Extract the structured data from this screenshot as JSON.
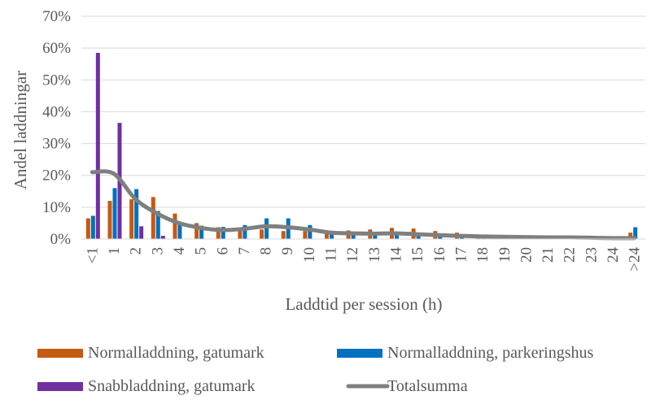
{
  "chart_data": {
    "type": "bar",
    "title": "",
    "xlabel": "Laddtid per session (h)",
    "ylabel": "Andel laddningar",
    "ylim": [
      0,
      0.7
    ],
    "yticks": [
      "0%",
      "10%",
      "20%",
      "30%",
      "40%",
      "50%",
      "60%",
      "70%"
    ],
    "grid": true,
    "legend_position": "bottom",
    "categories": [
      "<1",
      "1",
      "2",
      "3",
      "4",
      "5",
      "6",
      "7",
      "8",
      "9",
      "10",
      "11",
      "12",
      "13",
      "14",
      "15",
      "16",
      "17",
      "18",
      "19",
      "20",
      "21",
      "22",
      "23",
      "24",
      ">24"
    ],
    "series": [
      {
        "name": "Normalladdning, gatumark",
        "type": "bar",
        "color": "#C55A11",
        "values": [
          0.065,
          0.12,
          0.125,
          0.132,
          0.08,
          0.05,
          0.037,
          0.033,
          0.03,
          0.025,
          0.025,
          0.022,
          0.027,
          0.03,
          0.035,
          0.033,
          0.025,
          0.02,
          0.013,
          0.01,
          0.008,
          0.007,
          0.006,
          0.005,
          0.005,
          0.02
        ]
      },
      {
        "name": "Normalladdning, parkeringshus",
        "type": "bar",
        "color": "#0070C0",
        "values": [
          0.073,
          0.16,
          0.157,
          0.088,
          0.053,
          0.042,
          0.038,
          0.044,
          0.065,
          0.065,
          0.044,
          0.024,
          0.017,
          0.014,
          0.012,
          0.01,
          0.008,
          0.006,
          0.005,
          0.004,
          0.003,
          0.003,
          0.003,
          0.002,
          0.002,
          0.037
        ]
      },
      {
        "name": "Snabbladdning, gatumark",
        "type": "bar",
        "color": "#7030A0",
        "values": [
          0.585,
          0.365,
          0.04,
          0.01,
          0,
          0,
          0,
          0,
          0,
          0,
          0,
          0,
          0,
          0,
          0,
          0,
          0,
          0,
          0,
          0,
          0,
          0,
          0,
          0,
          0,
          0
        ]
      },
      {
        "name": "Totalsumma",
        "type": "line",
        "color": "#7F7F7F",
        "values": [
          0.21,
          0.205,
          0.125,
          0.08,
          0.05,
          0.035,
          0.028,
          0.032,
          0.04,
          0.037,
          0.03,
          0.02,
          0.018,
          0.017,
          0.018,
          0.015,
          0.012,
          0.01,
          0.008,
          0.007,
          0.006,
          0.005,
          0.005,
          0.004,
          0.003,
          0.003
        ]
      }
    ]
  }
}
